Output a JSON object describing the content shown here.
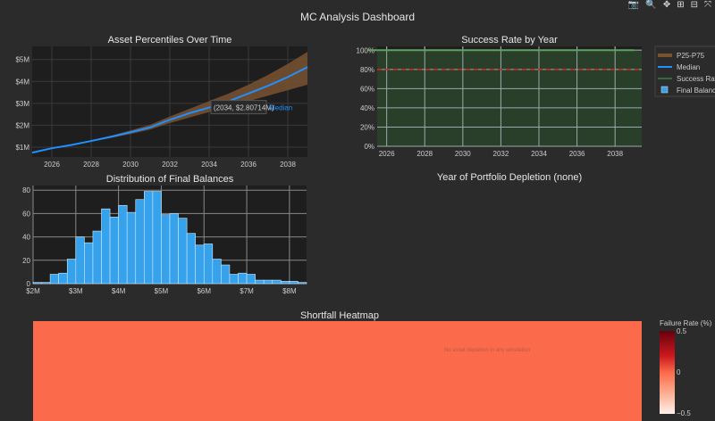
{
  "title": "MC Analysis Dashboard",
  "modebar": [
    {
      "icon": "camera-icon",
      "glyph": "📷"
    },
    {
      "icon": "zoom-icon",
      "glyph": "🔍"
    },
    {
      "icon": "pan-icon",
      "glyph": "✥"
    },
    {
      "icon": "zoom-in-icon",
      "glyph": "⊞"
    },
    {
      "icon": "zoom-out-icon",
      "glyph": "⊟"
    },
    {
      "icon": "autoscale-icon",
      "glyph": "⤧"
    }
  ],
  "legend": [
    {
      "label": "P25-P75",
      "color": "#7a5230"
    },
    {
      "label": "Median",
      "color": "#1e90ff"
    },
    {
      "label": "Success Rate",
      "color": "#3a6a3a"
    },
    {
      "label": "Final Balance",
      "color": "#36a2eb"
    }
  ],
  "chart_data": [
    {
      "type": "area",
      "title": "Asset Percentiles Over Time",
      "x": [
        2025,
        2026,
        2027,
        2028,
        2029,
        2030,
        2031,
        2032,
        2033,
        2034,
        2035,
        2036,
        2037,
        2038,
        2039
      ],
      "series": [
        {
          "name": "Median",
          "values": [
            0.75,
            0.95,
            1.1,
            1.28,
            1.47,
            1.68,
            1.9,
            2.25,
            2.55,
            2.807,
            3.1,
            3.45,
            3.8,
            4.2,
            4.65
          ]
        },
        {
          "name": "P25",
          "values": [
            0.75,
            0.94,
            1.08,
            1.25,
            1.42,
            1.6,
            1.8,
            2.1,
            2.35,
            2.6,
            2.85,
            3.1,
            3.35,
            3.6,
            3.85
          ]
        },
        {
          "name": "P75",
          "values": [
            0.76,
            0.96,
            1.12,
            1.31,
            1.52,
            1.76,
            2.02,
            2.4,
            2.75,
            3.1,
            3.45,
            3.85,
            4.3,
            4.8,
            5.35
          ]
        }
      ],
      "xticks": [
        "2026",
        "2028",
        "2030",
        "2032",
        "2034",
        "2036",
        "2038"
      ],
      "yticks": [
        "$1M",
        "$2M",
        "$3M",
        "$4M",
        "$5M"
      ],
      "xlim": [
        2025,
        2039
      ],
      "ylim": [
        0.55,
        5.6
      ],
      "tooltip": "(2034, $2.80714M)",
      "tooltip_series": "Median"
    },
    {
      "type": "line",
      "title": "Success Rate by Year",
      "x": [
        2025,
        2026,
        2027,
        2028,
        2029,
        2030,
        2031,
        2032,
        2033,
        2034,
        2035,
        2036,
        2037,
        2038,
        2039
      ],
      "values": [
        100,
        100,
        100,
        100,
        100,
        100,
        100,
        100,
        100,
        100,
        100,
        100,
        100,
        100,
        100
      ],
      "threshold": 80,
      "xticks": [
        "2026",
        "2028",
        "2030",
        "2032",
        "2034",
        "2036",
        "2038"
      ],
      "yticks": [
        "0%",
        "20%",
        "40%",
        "60%",
        "80%",
        "100%"
      ],
      "xlim": [
        2025.5,
        2039.4
      ],
      "ylim": [
        0,
        104
      ]
    },
    {
      "type": "bar",
      "title": "Distribution of Final Balances",
      "bin_start": 2.0,
      "bin_width": 0.2,
      "values": [
        1,
        1,
        8,
        9,
        21,
        40,
        35,
        45,
        64,
        57,
        67,
        61,
        72,
        79,
        79,
        59,
        60,
        56,
        43,
        33,
        34,
        21,
        16,
        8,
        9,
        8,
        3,
        3,
        3,
        2,
        2,
        1
      ],
      "xticks": [
        "$2M",
        "$3M",
        "$4M",
        "$5M",
        "$6M",
        "$7M",
        "$8M"
      ],
      "yticks": [
        "0",
        "20",
        "40",
        "60",
        "80"
      ],
      "xlim": [
        2,
        8.4
      ],
      "ylim": [
        0,
        84
      ]
    },
    {
      "type": "heatmap",
      "title": "Shortfall Heatmap",
      "annotation": "No asset depletion in any simulation",
      "colorbar_title": "Failure Rate (%)",
      "colorbar_ticks": [
        "0.5",
        "0",
        "−0.5"
      ],
      "value": 0
    }
  ],
  "depletion_title": "Year of Portfolio Depletion (none)"
}
